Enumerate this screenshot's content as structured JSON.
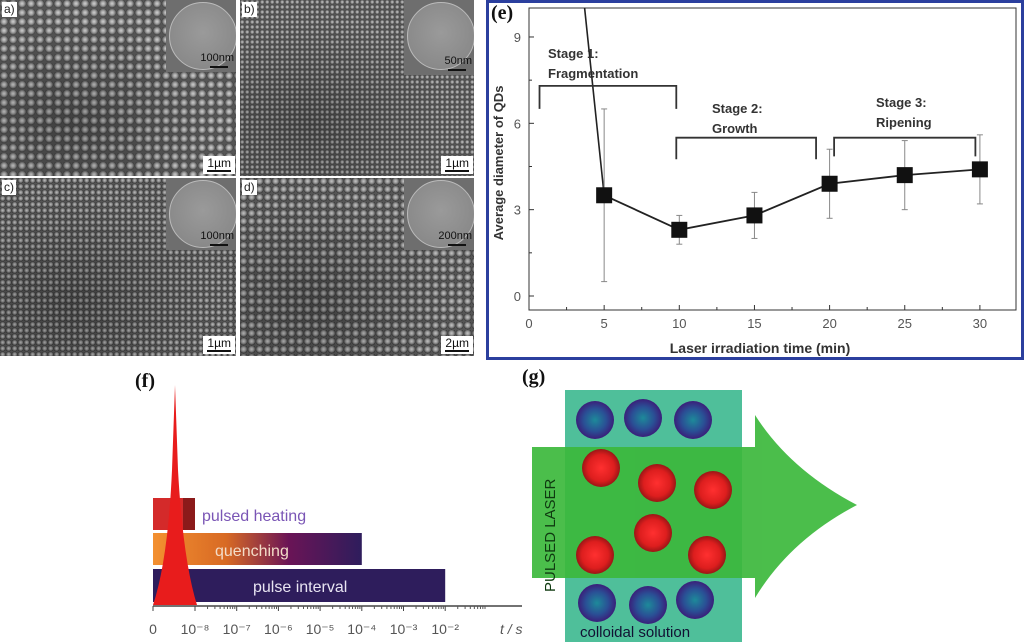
{
  "sem_panels": [
    {
      "tag": "a)",
      "inset_scale": "100nm",
      "scale": "1µm"
    },
    {
      "tag": "b)",
      "inset_scale": "50nm",
      "scale": "1µm"
    },
    {
      "tag": "c)",
      "inset_scale": "100nm",
      "scale": "1µm"
    },
    {
      "tag": "d)",
      "inset_scale": "200nm",
      "scale": "2µm"
    }
  ],
  "chart_data": [
    {
      "panel": "(e)",
      "type": "line",
      "xlabel": "Laser irradiation time (min)",
      "ylabel": "Average diameter of QDs",
      "xlim": [
        0,
        31
      ],
      "ylim": [
        -1,
        10.5
      ],
      "xticks": [
        "0",
        "5",
        "10",
        "15",
        "20",
        "25",
        "30"
      ],
      "yticks": [
        "0",
        "3",
        "6",
        "9"
      ],
      "grid": false,
      "series": [
        {
          "name": "Average diameter",
          "x": [
            5,
            10,
            15,
            20,
            25,
            30
          ],
          "y": [
            3.5,
            2.3,
            2.8,
            3.9,
            4.2,
            4.4
          ],
          "err_low": [
            0.5,
            1.8,
            2.0,
            2.7,
            3.0,
            3.2
          ],
          "err_high": [
            6.5,
            2.8,
            3.6,
            5.1,
            5.4,
            5.6
          ],
          "lead_in": {
            "x": [
              3.7,
              5
            ],
            "y": [
              10.5,
              3.5
            ]
          }
        }
      ],
      "annotations": [
        {
          "lines": [
            "Stage 1:",
            "Fragmentation"
          ],
          "x_range": [
            0.7,
            9.8
          ],
          "y_top": 7.3,
          "y_end": 6.5
        },
        {
          "lines": [
            "Stage 2:",
            "Growth"
          ],
          "x_range": [
            9.8,
            19.1
          ],
          "y_top": 5.5,
          "y_end": 4.75
        },
        {
          "lines": [
            "Stage 3:",
            "Ripening"
          ],
          "x_range": [
            20.3,
            29.7
          ],
          "y_top": 5.5,
          "y_end": 4.85
        }
      ]
    },
    {
      "panel": "(f)",
      "type": "bar",
      "orientation": "horizontal",
      "xscale": "log",
      "xlabel": "t / s",
      "xticks": [
        "0",
        "10⁻⁸",
        "10⁻⁷",
        "10⁻⁶",
        "10⁻⁵",
        "10⁻⁴",
        "10⁻³",
        "10⁻²"
      ],
      "categories": [
        "pulsed heating",
        "quenching",
        "pulse interval"
      ],
      "end_values_s": [
        1e-08,
        0.0001,
        0.01
      ],
      "colors": [
        "#d42a2a",
        "#f08a2a",
        "#2e1d5c"
      ]
    }
  ],
  "panel_g": {
    "tag": "(g)",
    "laser_label": "PULSED LASER",
    "solution_label": "colloidal solution",
    "colors": {
      "box": "#4fbf9a",
      "arrow": "#3cb83c",
      "before": "#2a2f8a",
      "after": "#e02424"
    }
  }
}
